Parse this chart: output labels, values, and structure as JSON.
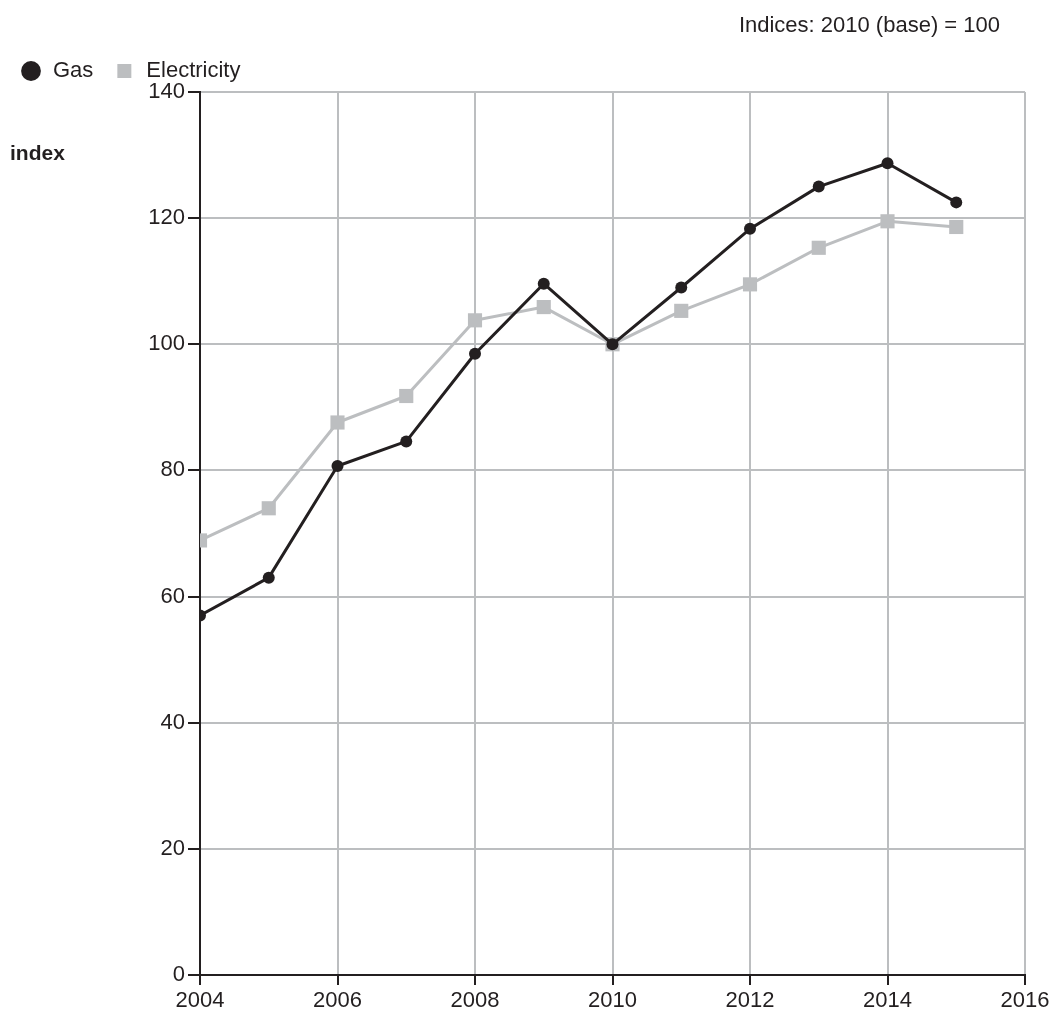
{
  "chart_data": {
    "type": "line",
    "ylabel": "index",
    "annotations": [
      "Indices: 2010 (base) = 100"
    ],
    "x": [
      2004,
      2005,
      2006,
      2007,
      2008,
      2009,
      2010,
      2011,
      2012,
      2013,
      2014,
      2015
    ],
    "series": [
      {
        "name": "Gas",
        "color": "#231f20",
        "marker": "circle",
        "values": [
          57.0,
          63.0,
          80.7,
          84.6,
          98.5,
          109.6,
          100,
          109.0,
          118.3,
          125.0,
          128.7,
          122.5
        ]
      },
      {
        "name": "Electricity",
        "color": "#bcbec0",
        "marker": "square",
        "values": [
          68.9,
          74.0,
          87.6,
          91.8,
          103.8,
          105.9,
          100,
          105.3,
          109.5,
          115.3,
          119.5,
          118.6
        ]
      }
    ],
    "xlim": [
      2004,
      2016
    ],
    "xticks": [
      2004,
      2006,
      2008,
      2010,
      2012,
      2014,
      2016
    ],
    "ylim": [
      0,
      140
    ],
    "yticks": [
      0,
      20,
      40,
      60,
      80,
      100,
      120,
      140
    ],
    "grid": true,
    "legend": "top left",
    "line_style": "solid"
  }
}
